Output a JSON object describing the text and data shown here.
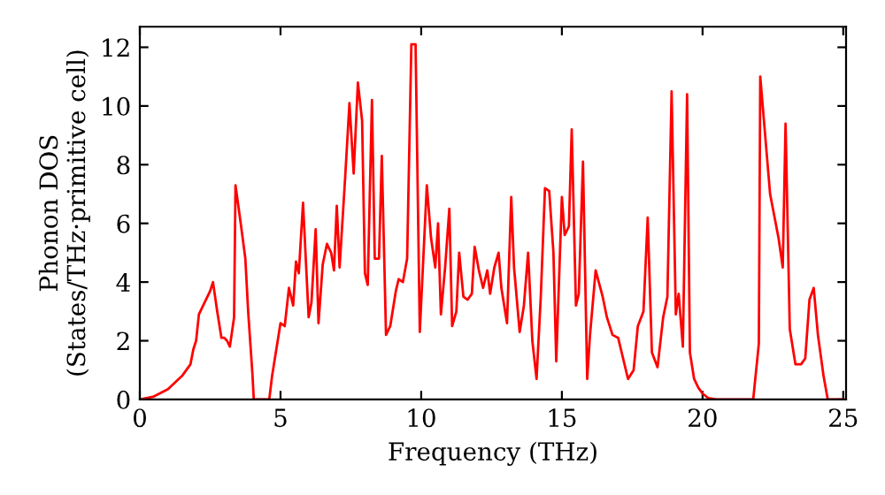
{
  "chart_data": {
    "type": "line",
    "xlabel": "Frequency (THz)",
    "ylabel": "Phonon DOS\n(States/THz·primitive cell)",
    "xlim": [
      0,
      25.1
    ],
    "ylim": [
      0,
      12.7
    ],
    "xticks": [
      0,
      5,
      10,
      15,
      20,
      25
    ],
    "yticks": [
      0,
      2,
      4,
      6,
      8,
      10,
      12
    ],
    "grid": false,
    "legend": false,
    "marker": "none",
    "line_style": "solid",
    "series": [
      {
        "color": "#ff0000",
        "x": [
          0,
          0.5,
          1,
          1.5,
          1.8,
          1.9,
          2.0,
          2.1,
          2.3,
          2.5,
          2.6,
          2.75,
          2.9,
          3.0,
          3.1,
          3.2,
          3.35,
          3.4,
          3.6,
          3.75,
          3.85,
          4.0,
          4.05,
          4.6,
          4.7,
          4.9,
          5.0,
          5.15,
          5.3,
          5.45,
          5.55,
          5.65,
          5.8,
          6.0,
          6.1,
          6.25,
          6.35,
          6.5,
          6.65,
          6.8,
          6.9,
          7.0,
          7.1,
          7.3,
          7.45,
          7.6,
          7.75,
          7.9,
          8.0,
          8.1,
          8.25,
          8.35,
          8.5,
          8.6,
          8.75,
          8.9,
          9.1,
          9.2,
          9.35,
          9.5,
          9.65,
          9.8,
          9.95,
          10.2,
          10.35,
          10.5,
          10.6,
          10.7,
          10.85,
          11.0,
          11.1,
          11.25,
          11.35,
          11.5,
          11.65,
          11.8,
          11.9,
          12.05,
          12.2,
          12.35,
          12.45,
          12.6,
          12.75,
          12.85,
          13.05,
          13.2,
          13.3,
          13.5,
          13.65,
          13.8,
          13.95,
          14.1,
          14.25,
          14.4,
          14.55,
          14.7,
          14.8,
          15.0,
          15.1,
          15.25,
          15.35,
          15.5,
          15.6,
          15.75,
          15.9,
          16.0,
          16.2,
          16.45,
          16.6,
          16.8,
          17.0,
          17.2,
          17.35,
          17.55,
          17.7,
          17.9,
          18.05,
          18.2,
          18.4,
          18.6,
          18.75,
          18.9,
          19.05,
          19.15,
          19.3,
          19.45,
          19.55,
          19.7,
          19.85,
          20.0,
          20.2,
          20.5,
          21.8,
          22.0,
          22.05,
          22.4,
          22.7,
          22.85,
          22.95,
          23.1,
          23.3,
          23.5,
          23.65,
          23.8,
          23.95,
          24.1,
          24.3,
          24.45,
          25.0
        ],
        "values": [
          0,
          0.1,
          0.35,
          0.8,
          1.2,
          1.7,
          2.0,
          2.9,
          3.3,
          3.7,
          4.0,
          3.0,
          2.1,
          2.1,
          2.0,
          1.8,
          2.8,
          7.3,
          5.9,
          4.8,
          3.0,
          0.9,
          0,
          0,
          0.8,
          2.0,
          2.6,
          2.5,
          3.8,
          3.2,
          4.7,
          4.3,
          6.7,
          2.8,
          3.3,
          5.8,
          2.6,
          4.6,
          5.3,
          5.0,
          4.4,
          6.6,
          4.5,
          7.6,
          10.1,
          7.7,
          10.8,
          9.5,
          4.3,
          3.9,
          10.2,
          4.8,
          4.8,
          8.3,
          2.2,
          2.5,
          3.7,
          4.1,
          4.0,
          4.8,
          12.1,
          12.1,
          2.3,
          7.3,
          5.5,
          4.5,
          6.0,
          2.9,
          4.5,
          6.5,
          2.5,
          3.0,
          5.0,
          3.5,
          3.4,
          3.6,
          5.2,
          4.4,
          3.8,
          4.4,
          3.6,
          4.5,
          5.0,
          3.8,
          2.6,
          6.9,
          4.5,
          2.3,
          3.2,
          5.0,
          2.0,
          0.7,
          3.5,
          7.2,
          7.1,
          5.0,
          1.3,
          6.9,
          5.6,
          5.9,
          9.2,
          3.2,
          3.6,
          8.1,
          0.7,
          2.2,
          4.4,
          3.5,
          2.8,
          2.2,
          2.1,
          1.3,
          0.7,
          1.0,
          2.5,
          3.0,
          6.2,
          1.6,
          1.1,
          2.8,
          3.5,
          10.5,
          2.9,
          3.6,
          1.8,
          10.4,
          1.6,
          0.7,
          0.4,
          0.2,
          0.05,
          0,
          0,
          1.9,
          11.0,
          7.0,
          5.5,
          4.5,
          9.4,
          2.4,
          1.2,
          1.2,
          1.4,
          3.4,
          3.8,
          2.2,
          0.8,
          0,
          0
        ]
      }
    ]
  }
}
